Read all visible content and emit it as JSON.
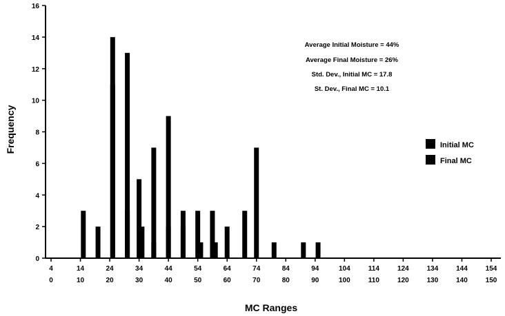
{
  "chart_data": {
    "type": "bar",
    "title": "",
    "xlabel": "MC Ranges",
    "ylabel": "Frequency",
    "ylim": [
      0,
      16
    ],
    "y_ticks": [
      "0",
      "2",
      "4",
      "6",
      "8",
      "10",
      "12",
      "14",
      "16"
    ],
    "x_ticks_top": [
      "4",
      "14",
      "24",
      "34",
      "44",
      "54",
      "64",
      "74",
      "84",
      "94",
      "104",
      "114",
      "124",
      "134",
      "144",
      "154"
    ],
    "x_ticks_bottom": [
      "0",
      "10",
      "20",
      "30",
      "40",
      "50",
      "60",
      "70",
      "80",
      "90",
      "100",
      "110",
      "120",
      "130",
      "140",
      "150"
    ],
    "grid": false,
    "legend_position": "right",
    "annotations": [
      "Average Initial Moisture = 44%",
      "Average Final Moisture = 26%",
      "Std. Dev., Initial MC = 17.8",
      "St. Dev., Final MC = 10.1"
    ],
    "series": [
      {
        "name": "Initial MC",
        "x": [
          16,
          21,
          26,
          30,
          35,
          40,
          45,
          50,
          55,
          60,
          65,
          70,
          75,
          80,
          85,
          90,
          95,
          100,
          105,
          110,
          115,
          120,
          125,
          130,
          135,
          140,
          145
        ],
        "values": [
          2,
          14,
          3,
          5,
          7,
          9,
          3,
          3,
          3,
          2,
          0,
          7,
          0,
          0,
          0,
          0,
          0,
          0,
          0,
          0,
          0,
          0,
          0,
          0,
          0,
          0,
          0
        ]
      },
      {
        "name": "Final MC",
        "x": [
          11,
          21,
          26,
          31,
          35,
          40,
          45,
          51,
          56,
          61,
          66,
          71,
          76,
          81,
          86,
          91
        ],
        "values": [
          3,
          11,
          13,
          2,
          1,
          2,
          2,
          1,
          1,
          0,
          3,
          0,
          1,
          0,
          1,
          1
        ]
      }
    ],
    "legend": [
      "Initial MC",
      "Final MC"
    ]
  }
}
